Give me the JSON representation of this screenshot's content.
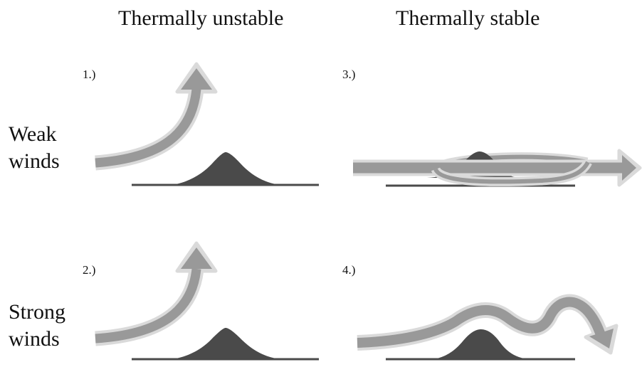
{
  "headings": {
    "unstable": "Thermally unstable",
    "stable": "Thermally stable"
  },
  "rows": {
    "weak": {
      "line1": "Weak",
      "line2": "winds"
    },
    "strong": {
      "line1": "Strong",
      "line2": "winds"
    }
  },
  "panels": [
    "1.)",
    "2.)",
    "3.)",
    "4.)"
  ],
  "colors": {
    "hill": "#4a4a4a",
    "arrow_fill": "#999999",
    "arrow_outline": "#dadada",
    "text": "#111111"
  }
}
